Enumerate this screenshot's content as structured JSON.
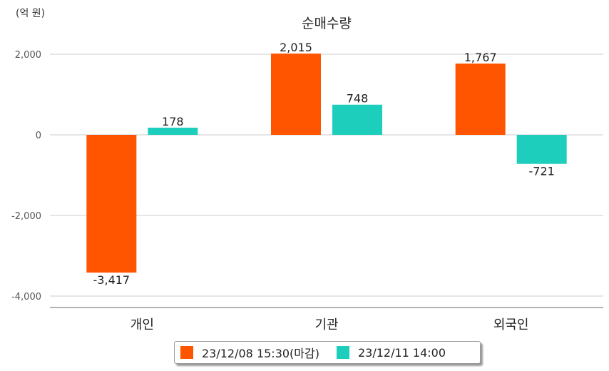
{
  "chart_data": {
    "type": "bar",
    "title": "순매수량",
    "unit_label": "(억 원)",
    "categories": [
      "개인",
      "기관",
      "외국인"
    ],
    "series": [
      {
        "name": "23/12/08 15:30(마감)",
        "color": "#ff5500",
        "values": [
          -3417,
          2015,
          1767
        ],
        "labels": [
          "-3,417",
          "2,015",
          "1,767"
        ]
      },
      {
        "name": "23/12/11 14:00",
        "color": "#1ecebc",
        "values": [
          178,
          748,
          -721
        ],
        "labels": [
          "178",
          "748",
          "-721"
        ]
      }
    ],
    "y_ticks": [
      2000,
      0,
      -2000,
      -4000
    ],
    "y_tick_labels": [
      "2,000",
      "0",
      "-2,000",
      "-4,000"
    ],
    "ylim": [
      -4300,
      2300
    ],
    "grid": true,
    "legend": "bottom-center"
  }
}
